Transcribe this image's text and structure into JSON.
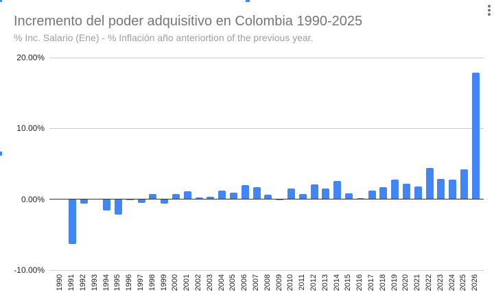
{
  "header": {
    "title": "Incremento del poder adquisitivo en Colombia 1990-2025",
    "subtitle": "% Inc. Salario (Ene) - % Inflación año anteriortion of the previous year.",
    "menu_icon": "more-vert-icon"
  },
  "colors": {
    "bar": "#4285f4",
    "title": "#757575",
    "subtitle": "#9e9e9e",
    "gridline": "#cccccc",
    "baseline": "#333333"
  },
  "axis": {
    "y_ticks": [
      "20.00%",
      "10.00%",
      "0.00%",
      "-10.00%"
    ]
  },
  "chart_data": {
    "type": "bar",
    "title": "Incremento del poder adquisitivo en Colombia 1990-2025",
    "subtitle": "% Inc. Salario (Ene) - % Inflación año anteriortion of the previous year.",
    "xlabel": "",
    "ylabel": "",
    "ylim": [
      -10,
      20
    ],
    "y_tick_labels": [
      "-10.00%",
      "0.00%",
      "10.00%",
      "20.00%"
    ],
    "grid": true,
    "legend": "none",
    "categories": [
      "1990",
      "1991",
      "1992",
      "1993",
      "1994",
      "1995",
      "1996",
      "1997",
      "1998",
      "1999",
      "2000",
      "2001",
      "2002",
      "2003",
      "2004",
      "2005",
      "2006",
      "2007",
      "2008",
      "2009",
      "2010",
      "2011",
      "2012",
      "2013",
      "2014",
      "2015",
      "2016",
      "2017",
      "2018",
      "2019",
      "2020",
      "2021",
      "2022",
      "2023",
      "2024",
      "2025",
      "2026"
    ],
    "values": [
      0.05,
      -6.25,
      -0.6,
      0.05,
      -1.5,
      -2.1,
      0,
      -0.5,
      0.8,
      -0.6,
      0.8,
      1.15,
      0.3,
      0.4,
      1.25,
      0.95,
      2.0,
      1.75,
      0.7,
      0,
      1.55,
      0.8,
      2.1,
      1.55,
      2.6,
      0.9,
      0.2,
      1.25,
      1.75,
      2.8,
      2.2,
      1.85,
      4.45,
      2.9,
      2.8,
      4.25,
      17.9
    ]
  }
}
